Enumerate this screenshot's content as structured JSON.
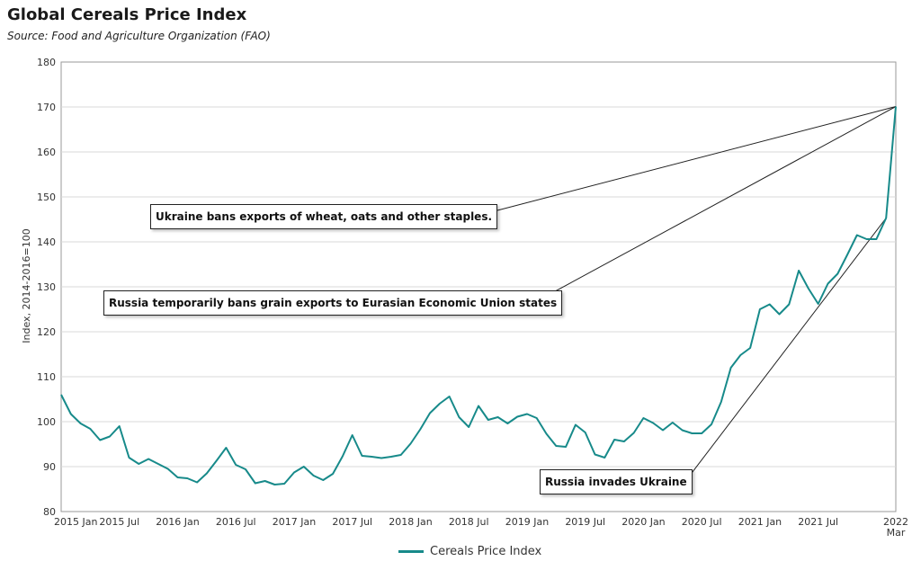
{
  "title": "Global Cereals Price Index",
  "subtitle": "Source: Food and Agriculture Organization (FAO)",
  "colors": {
    "series": "#178a8a",
    "grid": "#d9d9d9",
    "axis": "#999999"
  },
  "annotations": {
    "ukraine_ban": "Ukraine bans exports of wheat, oats and other staples.",
    "russia_ban": "Russia temporarily bans grain exports to Eurasian Economic Union states",
    "invasion": "Russia invades Ukraine"
  },
  "chart_data": {
    "type": "line",
    "title": "Global Cereals Price Index",
    "subtitle": "Source: Food and Agriculture Organization (FAO)",
    "ylabel": "Index, 2014-2016=100",
    "xlabel": "",
    "ylim": [
      80,
      180
    ],
    "yticks": [
      80,
      90,
      100,
      110,
      120,
      130,
      140,
      150,
      160,
      170,
      180
    ],
    "xticks": [
      {
        "date": "2015-01",
        "label": "2015 Jan"
      },
      {
        "date": "2015-07",
        "label": "2015 Jul"
      },
      {
        "date": "2016-01",
        "label": "2016 Jan"
      },
      {
        "date": "2016-07",
        "label": "2016 Jul"
      },
      {
        "date": "2017-01",
        "label": "2017 Jan"
      },
      {
        "date": "2017-07",
        "label": "2017 Jul"
      },
      {
        "date": "2018-01",
        "label": "2018 Jan"
      },
      {
        "date": "2018-07",
        "label": "2018 Jul"
      },
      {
        "date": "2019-01",
        "label": "2019 Jan"
      },
      {
        "date": "2019-07",
        "label": "2019 Jul"
      },
      {
        "date": "2020-01",
        "label": "2020 Jan"
      },
      {
        "date": "2020-07",
        "label": "2020 Jul"
      },
      {
        "date": "2021-01",
        "label": "2021 Jan"
      },
      {
        "date": "2021-07",
        "label": "2021 Jul"
      },
      {
        "date": "2022-03",
        "label": "2022",
        "label2": "Mar"
      }
    ],
    "grid": true,
    "legend": "bottom-center",
    "series": [
      {
        "name": "Cereals Price Index",
        "x": [
          "2015-01",
          "2015-02",
          "2015-03",
          "2015-04",
          "2015-05",
          "2015-06",
          "2015-07",
          "2015-08",
          "2015-09",
          "2015-10",
          "2015-11",
          "2015-12",
          "2016-01",
          "2016-02",
          "2016-03",
          "2016-04",
          "2016-05",
          "2016-06",
          "2016-07",
          "2016-08",
          "2016-09",
          "2016-10",
          "2016-11",
          "2016-12",
          "2017-01",
          "2017-02",
          "2017-03",
          "2017-04",
          "2017-05",
          "2017-06",
          "2017-07",
          "2017-08",
          "2017-09",
          "2017-10",
          "2017-11",
          "2017-12",
          "2018-01",
          "2018-02",
          "2018-03",
          "2018-04",
          "2018-05",
          "2018-06",
          "2018-07",
          "2018-08",
          "2018-09",
          "2018-10",
          "2018-11",
          "2018-12",
          "2019-01",
          "2019-02",
          "2019-03",
          "2019-04",
          "2019-05",
          "2019-06",
          "2019-07",
          "2019-08",
          "2019-09",
          "2019-10",
          "2019-11",
          "2019-12",
          "2020-01",
          "2020-02",
          "2020-03",
          "2020-04",
          "2020-05",
          "2020-06",
          "2020-07",
          "2020-08",
          "2020-09",
          "2020-10",
          "2020-11",
          "2020-12",
          "2021-01",
          "2021-02",
          "2021-03",
          "2021-04",
          "2021-05",
          "2021-06",
          "2021-07",
          "2021-08",
          "2021-09",
          "2021-10",
          "2021-11",
          "2021-12",
          "2022-01",
          "2022-02",
          "2022-03"
        ],
        "values": [
          106.0,
          101.7,
          99.6,
          98.4,
          95.9,
          96.7,
          99.0,
          92.0,
          90.6,
          91.7,
          90.6,
          89.5,
          87.6,
          87.4,
          86.5,
          88.5,
          91.3,
          94.2,
          90.4,
          89.4,
          86.3,
          86.8,
          86.0,
          86.2,
          88.7,
          90.0,
          88.0,
          87.0,
          88.4,
          92.3,
          97.0,
          92.4,
          92.2,
          91.9,
          92.2,
          92.6,
          95.1,
          98.3,
          101.9,
          104.0,
          105.6,
          101.0,
          98.8,
          103.5,
          100.4,
          101.0,
          99.6,
          101.1,
          101.7,
          100.8,
          97.3,
          94.6,
          94.4,
          99.3,
          97.6,
          92.7,
          92.0,
          96.0,
          95.6,
          97.5,
          100.8,
          99.7,
          98.1,
          99.8,
          98.1,
          97.4,
          97.4,
          99.4,
          104.4,
          112.0,
          114.8,
          116.4,
          125.0,
          126.1,
          123.9,
          126.1,
          133.6,
          129.6,
          126.2,
          130.7,
          132.9,
          137.1,
          141.5,
          140.6,
          140.6,
          145.3,
          170.1
        ]
      }
    ]
  }
}
